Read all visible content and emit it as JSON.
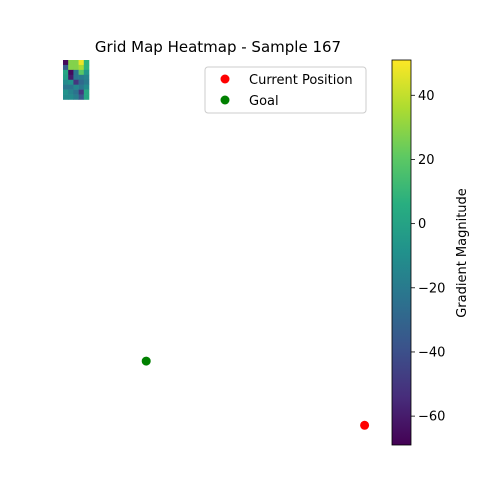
{
  "chart_data": {
    "type": "heatmap",
    "title": "Grid Map Heatmap - Sample 167",
    "grid": {
      "rows": 8,
      "cols": 5,
      "values": [
        [
          -66,
          28,
          28,
          48,
          8
        ],
        [
          -34,
          28,
          28,
          35,
          8
        ],
        [
          2,
          -66,
          -22,
          20,
          -6
        ],
        [
          -2,
          -60,
          -22,
          -20,
          -16
        ],
        [
          -12,
          -8,
          -50,
          -28,
          -20
        ],
        [
          -22,
          -22,
          -14,
          -22,
          -12
        ],
        [
          -8,
          -16,
          -24,
          -50,
          2
        ],
        [
          -12,
          -12,
          -18,
          -36,
          2
        ]
      ]
    },
    "markers": [
      {
        "name": "Current Position",
        "color": "#ff0000",
        "x": 58,
        "y": 74
      },
      {
        "name": "Goal",
        "color": "#008000",
        "x": 16,
        "y": 61
      }
    ],
    "xlim": [
      0,
      60
    ],
    "ylim": [
      78,
      0
    ],
    "colorbar": {
      "label": "Gradient Magnitude",
      "colormap": "viridis",
      "vmin": -69,
      "vmax": 51,
      "ticks": [
        40,
        20,
        0,
        -20,
        -40,
        -60
      ],
      "tick_labels": [
        "40",
        "20",
        "0",
        "−20",
        "−40",
        "−60"
      ]
    },
    "legend": {
      "placement": "top-right"
    },
    "axes_visible": false,
    "grid_lines": false
  }
}
